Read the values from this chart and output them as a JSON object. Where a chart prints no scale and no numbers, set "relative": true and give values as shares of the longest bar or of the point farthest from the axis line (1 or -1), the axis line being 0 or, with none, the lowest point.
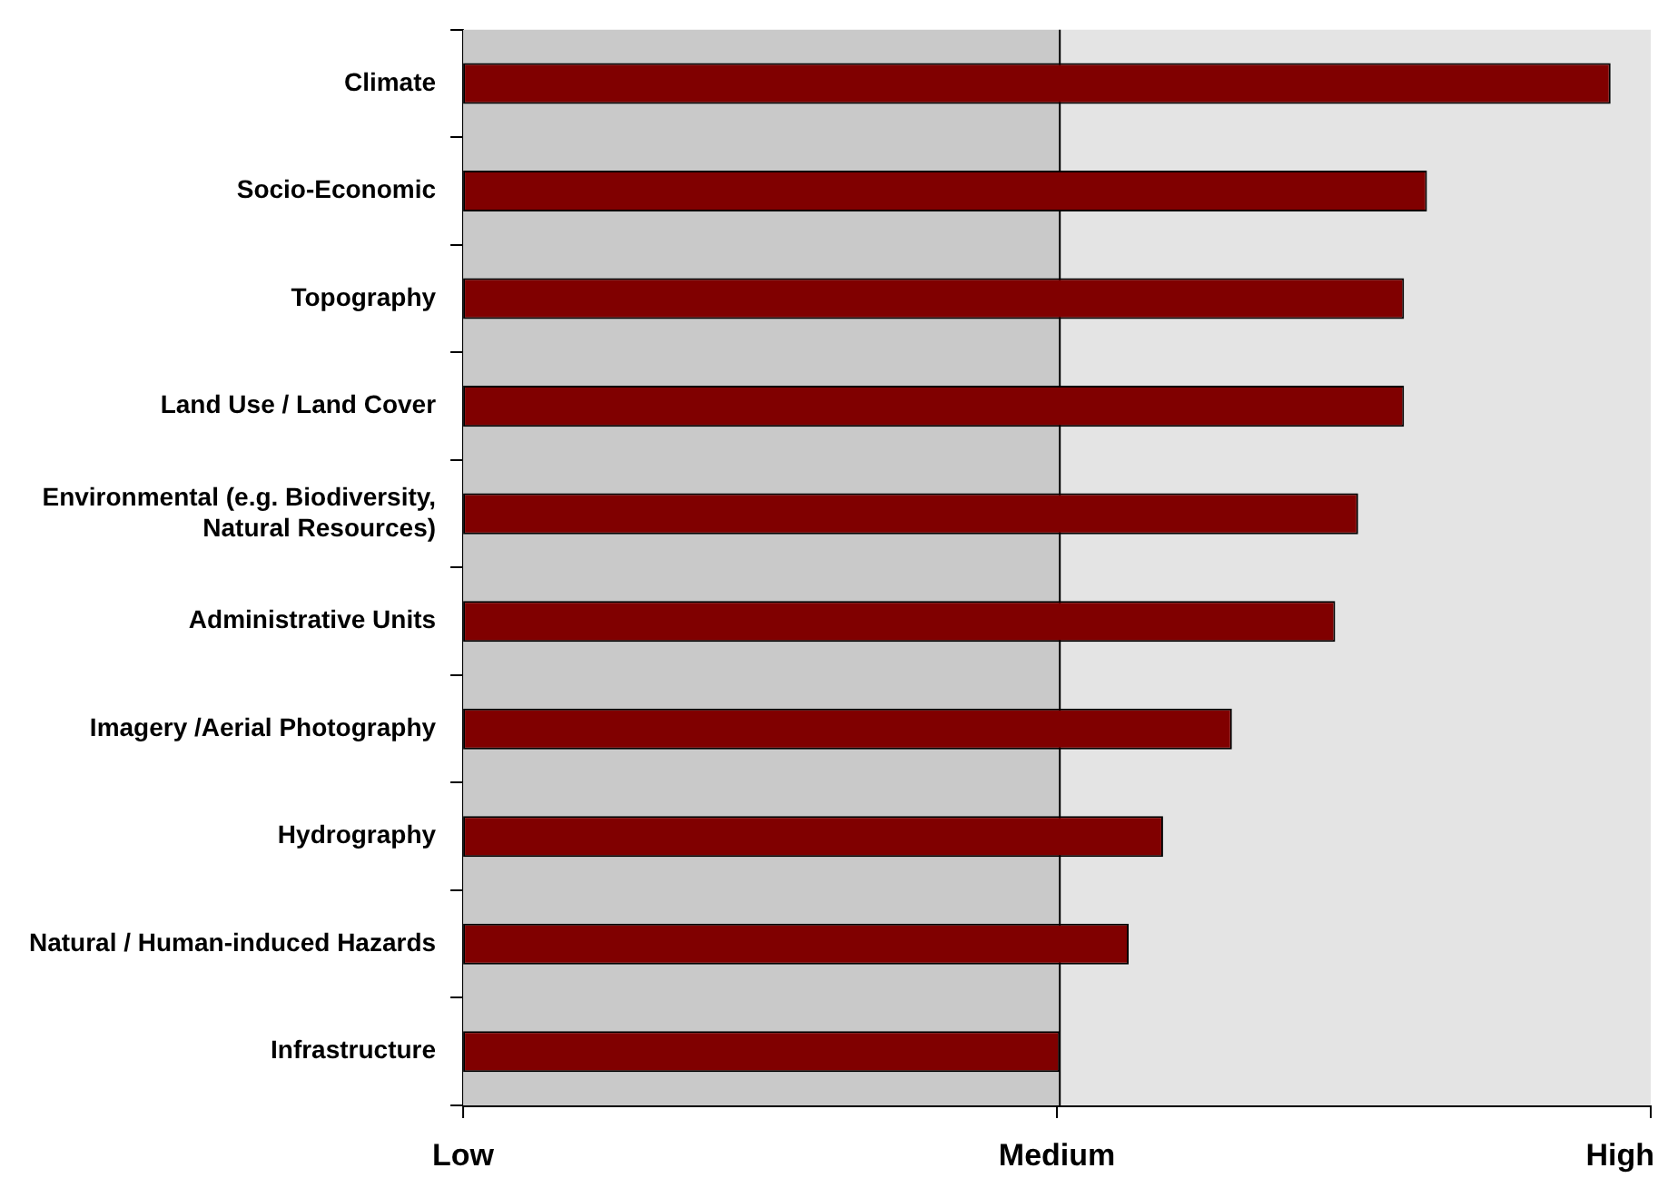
{
  "chart_data": {
    "type": "bar",
    "orientation": "horizontal",
    "relative": true,
    "categories": [
      "Climate",
      "Socio-Economic",
      "Topography",
      "Land Use / Land Cover",
      "Environmental (e.g. Biodiversity, Natural Resources)",
      "Administrative Units",
      "Imagery /Aerial Photography",
      "Hydrography",
      "Natural / Human-induced Hazards",
      "Infrastructure"
    ],
    "values": [
      1,
      0.84,
      0.82,
      0.82,
      0.78,
      0.76,
      0.67,
      0.61,
      0.58,
      0.52
    ],
    "color": "#800000",
    "bands": [
      {
        "axis": "x",
        "from": 0,
        "to": 0.52,
        "color": "#c9c9c9"
      },
      {
        "axis": "x",
        "from": 0.52,
        "to": 1.035,
        "color": "#e4e4e4"
      }
    ],
    "ref_lines": [
      {
        "axis": "x",
        "value": 0.52,
        "color": "#000000"
      }
    ],
    "annotations": [
      "Low",
      "Medium",
      "High"
    ],
    "legend": false
  }
}
